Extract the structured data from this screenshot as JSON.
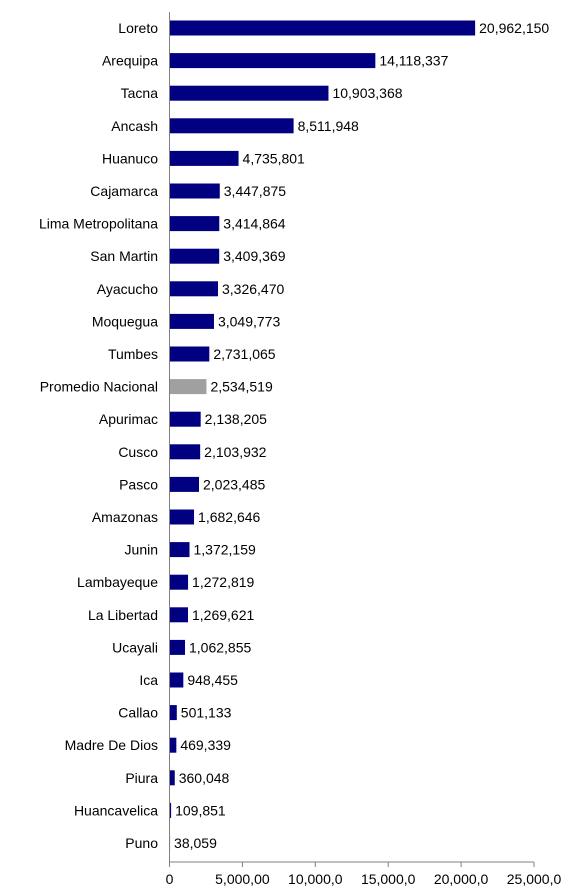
{
  "chart_data": {
    "type": "bar",
    "orientation": "horizontal",
    "title": "",
    "xlabel": "",
    "ylabel": "",
    "xlim": [
      0,
      25000000
    ],
    "grid": false,
    "legend": "none",
    "colors": {
      "default": "#000080",
      "highlight": "#a0a0a0"
    },
    "x_tick_labels": [
      "0",
      "5,000,00",
      "10,000,0",
      "15,000,0",
      "20,000,0",
      "25,000,0"
    ],
    "x_tick_values": [
      0,
      5000000,
      10000000,
      15000000,
      20000000,
      25000000
    ],
    "categories": [
      "Loreto",
      "Arequipa",
      "Tacna",
      "Ancash",
      "Huanuco",
      "Cajamarca",
      "Lima Metropolitana",
      "San Martin",
      "Ayacucho",
      "Moquegua",
      "Tumbes",
      "Promedio Nacional",
      "Apurimac",
      "Cusco",
      "Pasco",
      "Amazonas",
      "Junin",
      "Lambayeque",
      "La Libertad",
      "Ucayali",
      "Ica",
      "Callao",
      "Madre De Dios",
      "Piura",
      "Huancavelica",
      "Puno"
    ],
    "values": [
      20962150,
      14118337,
      10903368,
      8511948,
      4735801,
      3447875,
      3414864,
      3409369,
      3326470,
      3049773,
      2731065,
      2534519,
      2138205,
      2103932,
      2023485,
      1682646,
      1372159,
      1272819,
      1269621,
      1062855,
      948455,
      501133,
      469339,
      360048,
      109851,
      38059
    ],
    "value_labels": [
      "20,962,150",
      "14,118,337",
      "10,903,368",
      "8,511,948",
      "4,735,801",
      "3,447,875",
      "3,414,864",
      "3,409,369",
      "3,326,470",
      "3,049,773",
      "2,731,065",
      "2,534,519",
      "2,138,205",
      "2,103,932",
      "2,023,485",
      "1,682,646",
      "1,372,159",
      "1,272,819",
      "1,269,621",
      "1,062,855",
      "948,455",
      "501,133",
      "469,339",
      "360,048",
      "109,851",
      "38,059"
    ],
    "highlight_category": "Promedio Nacional"
  }
}
